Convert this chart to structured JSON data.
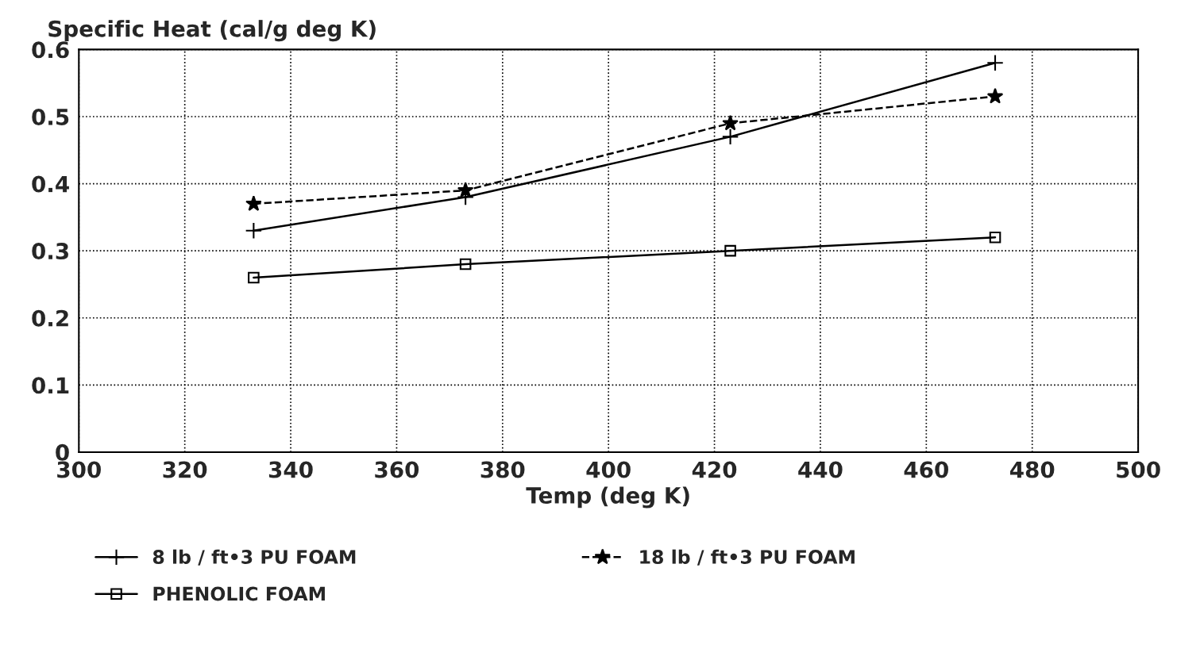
{
  "chart_data": {
    "type": "line",
    "ylabel": "Specific Heat (cal/g deg K)",
    "xlabel": "Temp (deg K)",
    "x": [
      333,
      373,
      423,
      473
    ],
    "series": [
      {
        "name": "8 lb / ft•3 PU FOAM",
        "color": "#000000",
        "marker": "cross",
        "line_style": "solid",
        "values": [
          0.33,
          0.38,
          0.47,
          0.58
        ]
      },
      {
        "name": "18 lb / ft•3 PU FOAM",
        "color": "#000000",
        "marker": "star",
        "line_style": "dashed",
        "values": [
          0.37,
          0.39,
          0.49,
          0.53
        ]
      },
      {
        "name": "PHENOLIC FOAM",
        "color": "#000000",
        "marker": "square",
        "line_style": "solid",
        "values": [
          0.26,
          0.28,
          0.3,
          0.32
        ]
      }
    ],
    "xlim": [
      300,
      500
    ],
    "xticks": [
      300,
      320,
      340,
      360,
      380,
      400,
      420,
      440,
      460,
      480,
      500
    ],
    "ylim": [
      0,
      0.6
    ],
    "yticks": [
      0,
      0.1,
      0.2,
      0.3,
      0.4,
      0.5,
      0.6
    ],
    "grid": true,
    "legend": "bottom"
  }
}
